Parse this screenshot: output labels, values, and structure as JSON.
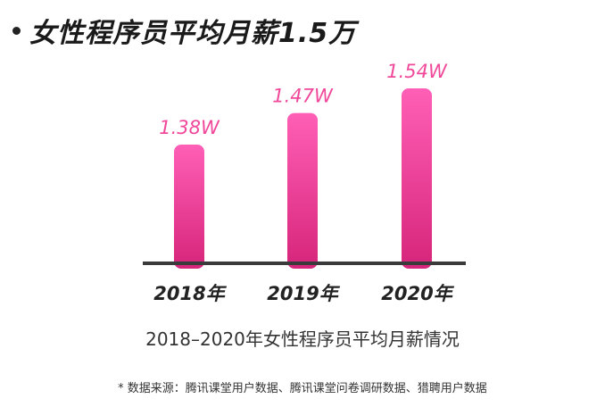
{
  "headline": "女性程序员平均月薪1.5万",
  "caption": "2018–2020年女性程序员平均月薪情况",
  "source": "* 数据来源：腾讯课堂用户数据、腾讯课堂问卷调研数据、猎聘用户数据",
  "colors": {
    "bar_top": "#ff5fb6",
    "bar_bottom": "#d6257a",
    "value_label": "#f0489a",
    "axis": "#3a3a3a",
    "headline": "#1a1a1a"
  },
  "chart_data": {
    "type": "bar",
    "categories": [
      "2018年",
      "2019年",
      "2020年"
    ],
    "values": [
      1.38,
      1.47,
      1.54
    ],
    "value_labels": [
      "1.38W",
      "1.47W",
      "1.54W"
    ],
    "unit": "W",
    "grid": false,
    "legend": "none"
  }
}
